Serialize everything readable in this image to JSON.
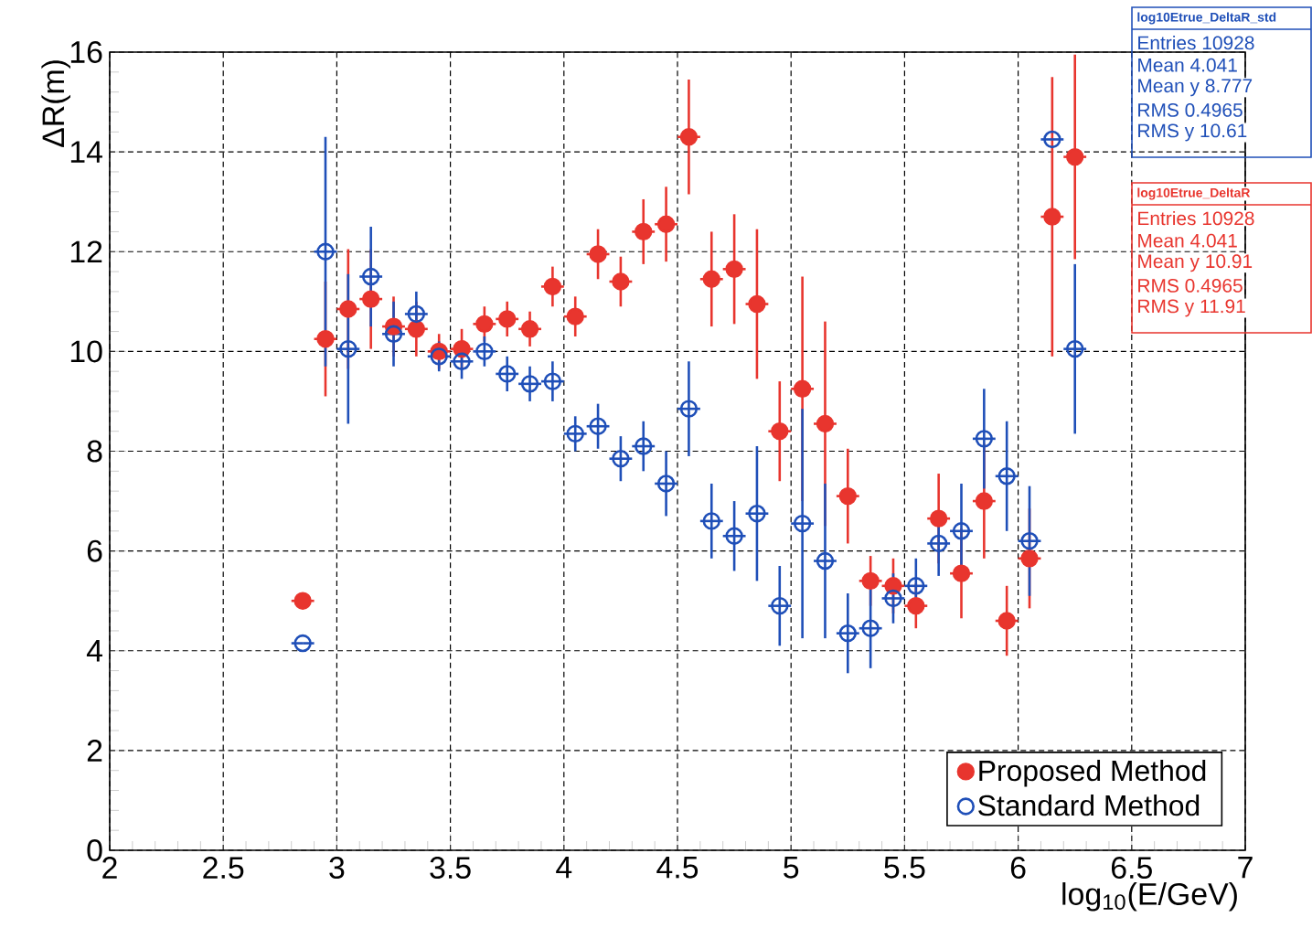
{
  "chart_data": {
    "type": "scatter",
    "xlabel": "log$_{10}$(E/GeV)",
    "ylabel": "ΔR(m)",
    "x": [
      2.85,
      2.95,
      3.05,
      3.15,
      3.25,
      3.35,
      3.45,
      3.55,
      3.65,
      3.75,
      3.85,
      3.95,
      4.05,
      4.15,
      4.25,
      4.35,
      4.45,
      4.55,
      4.65,
      4.75,
      4.85,
      4.95,
      5.05,
      5.15,
      5.25,
      5.35,
      5.45,
      5.55,
      5.65,
      5.75,
      5.85,
      5.95,
      6.05,
      6.15,
      6.25
    ],
    "series": [
      {
        "name": "Proposed Method",
        "color": "#e8352e",
        "marker": "circle",
        "values": [
          5.0,
          10.25,
          10.85,
          11.05,
          10.5,
          10.45,
          10.0,
          10.05,
          10.55,
          10.65,
          10.45,
          11.3,
          10.7,
          11.95,
          11.4,
          12.4,
          12.55,
          14.3,
          11.45,
          11.65,
          10.95,
          8.4,
          9.25,
          8.55,
          7.1,
          5.4,
          5.3,
          4.9,
          6.65,
          5.55,
          7.0,
          4.6,
          5.85,
          12.7,
          13.9
        ],
        "errors": [
          null,
          1.15,
          1.2,
          1.0,
          0.6,
          0.55,
          0.35,
          0.4,
          0.35,
          0.35,
          0.35,
          0.4,
          0.4,
          0.5,
          0.5,
          0.65,
          0.75,
          1.15,
          0.95,
          1.1,
          1.5,
          1.0,
          2.25,
          2.05,
          0.95,
          0.5,
          0.55,
          0.45,
          0.9,
          0.9,
          1.15,
          0.7,
          1.0,
          2.8,
          2.05
        ],
        "xerrors": [
          0.05,
          0.05,
          0.05,
          0.05,
          0.05,
          0.05,
          0.05,
          0.05,
          0.05,
          0.05,
          0.05,
          0.05,
          0.05,
          0.05,
          0.05,
          0.05,
          0.05,
          0.05,
          0.05,
          0.05,
          0.05,
          0.05,
          0.05,
          0.05,
          0.05,
          0.05,
          0.05,
          0.05,
          0.05,
          0.05,
          0.05,
          0.05,
          0.05,
          0.05,
          0.05
        ]
      },
      {
        "name": "Standard Method",
        "color": "#1f4fb8",
        "marker": "circle",
        "values": [
          4.15,
          12.0,
          10.05,
          11.5,
          10.35,
          10.75,
          9.9,
          9.8,
          10.0,
          9.55,
          9.35,
          9.4,
          8.35,
          8.5,
          7.85,
          8.1,
          7.35,
          8.85,
          6.6,
          6.3,
          6.75,
          4.9,
          6.55,
          5.8,
          4.35,
          4.45,
          5.05,
          5.3,
          6.15,
          6.4,
          8.25,
          7.5,
          6.2,
          14.25,
          10.05
        ],
        "errors": [
          null,
          2.3,
          1.5,
          1.0,
          0.65,
          0.45,
          0.3,
          0.35,
          0.3,
          0.35,
          0.35,
          0.4,
          0.35,
          0.45,
          0.45,
          0.5,
          0.65,
          0.95,
          0.75,
          0.7,
          1.35,
          0.8,
          2.3,
          1.55,
          0.8,
          0.8,
          0.5,
          0.55,
          0.65,
          0.95,
          1.0,
          1.1,
          1.1,
          null,
          1.7
        ],
        "xerrors": [
          0.05,
          0.05,
          0.05,
          0.05,
          0.05,
          0.05,
          0.05,
          0.05,
          0.05,
          0.05,
          0.05,
          0.05,
          0.05,
          0.05,
          0.05,
          0.05,
          0.05,
          0.05,
          0.05,
          0.05,
          0.05,
          0.05,
          0.05,
          0.05,
          0.05,
          0.05,
          0.05,
          0.05,
          0.05,
          0.05,
          0.05,
          0.05,
          0.05,
          0.05,
          0.05
        ]
      }
    ],
    "xlim": [
      2,
      7
    ],
    "xticks": [
      2,
      2.5,
      3,
      3.5,
      4,
      4.5,
      5,
      5.5,
      6,
      6.5,
      7
    ],
    "ylim": [
      0,
      16
    ],
    "yticks": [
      0,
      2,
      4,
      6,
      8,
      10,
      12,
      14,
      16
    ],
    "grid": true,
    "legend": "bottom right",
    "annotations": [
      "log10Etrue_DeltaR_std",
      "Entries 10928",
      "Mean 4.041",
      "Mean y 8.777",
      "RMS 0.4965",
      "RMS y 10.61",
      "log10Etrue_DeltaR",
      "Entries 10928",
      "Mean 4.041",
      "Mean y 10.91",
      "RMS 0.4965",
      "RMS y 11.91"
    ]
  }
}
